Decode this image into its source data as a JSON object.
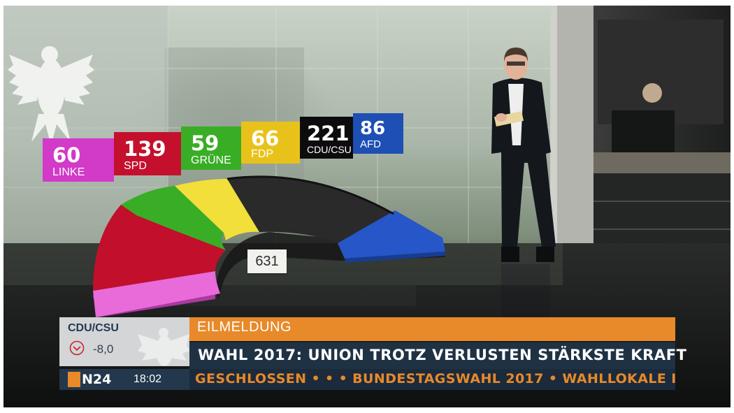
{
  "seats": [
    {
      "key": "linke",
      "count": "60",
      "label": "LINKE",
      "color": "#d23ac8"
    },
    {
      "key": "spd",
      "count": "139",
      "label": "SPD",
      "color": "#c4102d"
    },
    {
      "key": "gruene",
      "count": "59",
      "label": "GRÜNE",
      "color": "#3aad26"
    },
    {
      "key": "fdp",
      "count": "66",
      "label": "FDP",
      "color": "#e8c21a"
    },
    {
      "key": "cducsu",
      "count": "221",
      "label": "CDU/CSU",
      "color": "#0c0c0c"
    },
    {
      "key": "afd",
      "count": "86",
      "label": "AFD",
      "color": "#1e4fb5"
    }
  ],
  "total_seats": "631",
  "ticker": {
    "party": "CDU/CSU",
    "change": "-8,0",
    "breaking": "EILMELDUNG",
    "headline": "WAHL 2017: UNION TROTZ VERLUSTEN STÄRKSTE KRAFT",
    "crawl": "GESCHLOSSEN • • • BUNDESTAGSWAHL 2017 • WAHLLOKALE I",
    "channel": "N24",
    "time": "18:02"
  },
  "colors": {
    "accent": "#e8892a",
    "ticker_dark": "#1f3244"
  }
}
